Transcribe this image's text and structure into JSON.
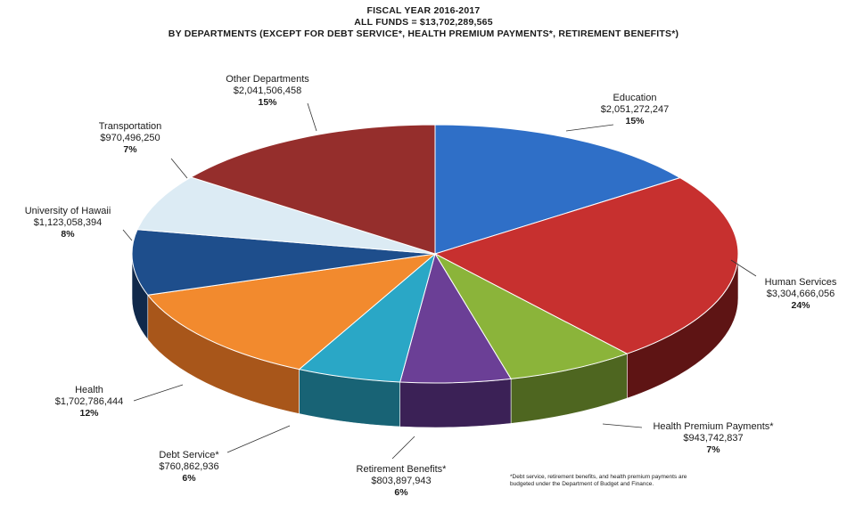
{
  "chart_data": {
    "type": "pie",
    "title_lines": [
      "FISCAL YEAR 2016-2017",
      "ALL FUNDS = $13,702,289,565",
      "BY DEPARTMENTS (EXCEPT FOR DEBT SERVICE*, HEALTH PREMIUM PAYMENTS*, RETIREMENT BENEFITS*)"
    ],
    "slices": [
      {
        "label": "Education",
        "amount": "$2,051,272,247",
        "percent": "15%",
        "value": 2051272247,
        "color": "#2f6fc7",
        "side": "#1f4b88"
      },
      {
        "label": "Human Services",
        "amount": "$3,304,666,056",
        "percent": "24%",
        "value": 3304666056,
        "color": "#c7302f",
        "side": "#5e1414"
      },
      {
        "label": "Health Premium Payments*",
        "amount": "$943,742,837",
        "percent": "7%",
        "value": 943742837,
        "color": "#8bb43a",
        "side": "#4e6620"
      },
      {
        "label": "Retirement Benefits*",
        "amount": "$803,897,943",
        "percent": "6%",
        "value": 803897943,
        "color": "#6b3f96",
        "side": "#3b2156"
      },
      {
        "label": "Debt Service*",
        "amount": "$760,862,936",
        "percent": "6%",
        "value": 760862936,
        "color": "#2aa7c6",
        "side": "#186375"
      },
      {
        "label": "Health",
        "amount": "$1,702,786,444",
        "percent": "12%",
        "value": 1702786444,
        "color": "#f28a2e",
        "side": "#a8561a"
      },
      {
        "label": "University of Hawaii",
        "amount": "$1,123,058,394",
        "percent": "8%",
        "value": 1123058394,
        "color": "#1e4e8c",
        "side": "#10294b"
      },
      {
        "label": "Transportation",
        "amount": "$970,496,250",
        "percent": "7%",
        "value": 970496250,
        "color": "#dcebf4",
        "side": "#9fb3c0"
      },
      {
        "label": "Other Departments",
        "amount": "$2,041,506,458",
        "percent": "15%",
        "value": 2041506458,
        "color": "#952e2c",
        "side": "#561816"
      }
    ]
  },
  "footnote": "*Debt service, retirement benefits, and health premium payments are budgeted under the Department of Budget and Finance."
}
